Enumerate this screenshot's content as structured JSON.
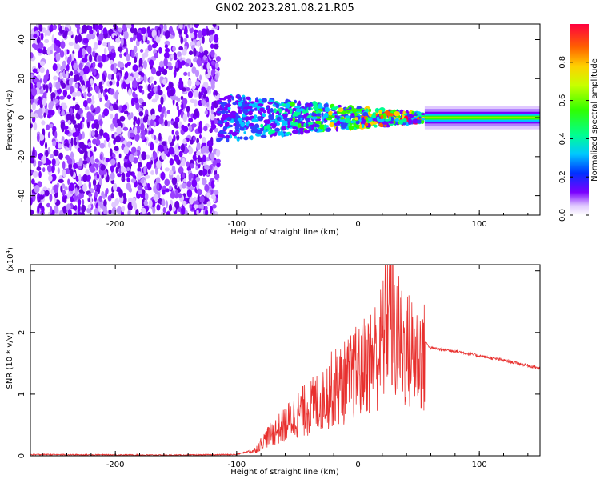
{
  "page": {
    "title": "GN02.2023.281.08.21.R05"
  },
  "colors": {
    "snr_line": "#e8302e",
    "spectrogram_base": "#7a00ff"
  },
  "chart_data": [
    {
      "type": "heatmap",
      "title": "GN02.2023.281.08.21.R05",
      "xlabel": "Height of straight line (km)",
      "ylabel": "Frequency (Hz)",
      "xlim": [
        -270,
        150
      ],
      "ylim": [
        -50,
        48
      ],
      "x_ticks": [
        "-200",
        "-100",
        "0",
        "100"
      ],
      "y_ticks": [
        "-40",
        "-20",
        "0",
        "20",
        "40"
      ],
      "colorbar": {
        "label": "Normalized spectral amplitude",
        "range": [
          0,
          1
        ],
        "ticks": [
          "0.0",
          "0.2",
          "0.4",
          "0.6",
          "0.8"
        ]
      },
      "regions": [
        {
          "x": [
            -270,
            -115
          ],
          "description_level": 0.3
        },
        {
          "x": [
            -115,
            55
          ],
          "description_level": 0.55
        },
        {
          "x": [
            55,
            150
          ],
          "description_level": 0.6
        }
      ]
    },
    {
      "type": "line",
      "xlabel": "Height of straight line (km)",
      "ylabel": "SNR (10 * v/v)",
      "y_multiplier": "(x10^4)",
      "y_multiplier_base": "(x10",
      "y_multiplier_exp": "4",
      "y_multiplier_close": ")",
      "xlim": [
        -270,
        150
      ],
      "ylim": [
        0,
        3.1
      ],
      "x_ticks": [
        "-200",
        "-100",
        "0",
        "100"
      ],
      "y_ticks": [
        "0",
        "1",
        "2",
        "3"
      ],
      "series": [
        {
          "x": [
            -270,
            -150,
            -100,
            -85,
            -75,
            -60,
            -50,
            -40,
            -30,
            -20,
            -10,
            0,
            10,
            20,
            25,
            30,
            40,
            50,
            60,
            70,
            80,
            100,
            120,
            150
          ],
          "y": [
            0.02,
            0.01,
            0.02,
            0.1,
            0.35,
            0.6,
            0.8,
            0.9,
            1.1,
            1.3,
            1.4,
            1.6,
            1.8,
            2.1,
            2.9,
            2.3,
            2.0,
            1.95,
            1.75,
            1.72,
            1.7,
            1.62,
            1.55,
            1.42
          ]
        }
      ]
    }
  ]
}
